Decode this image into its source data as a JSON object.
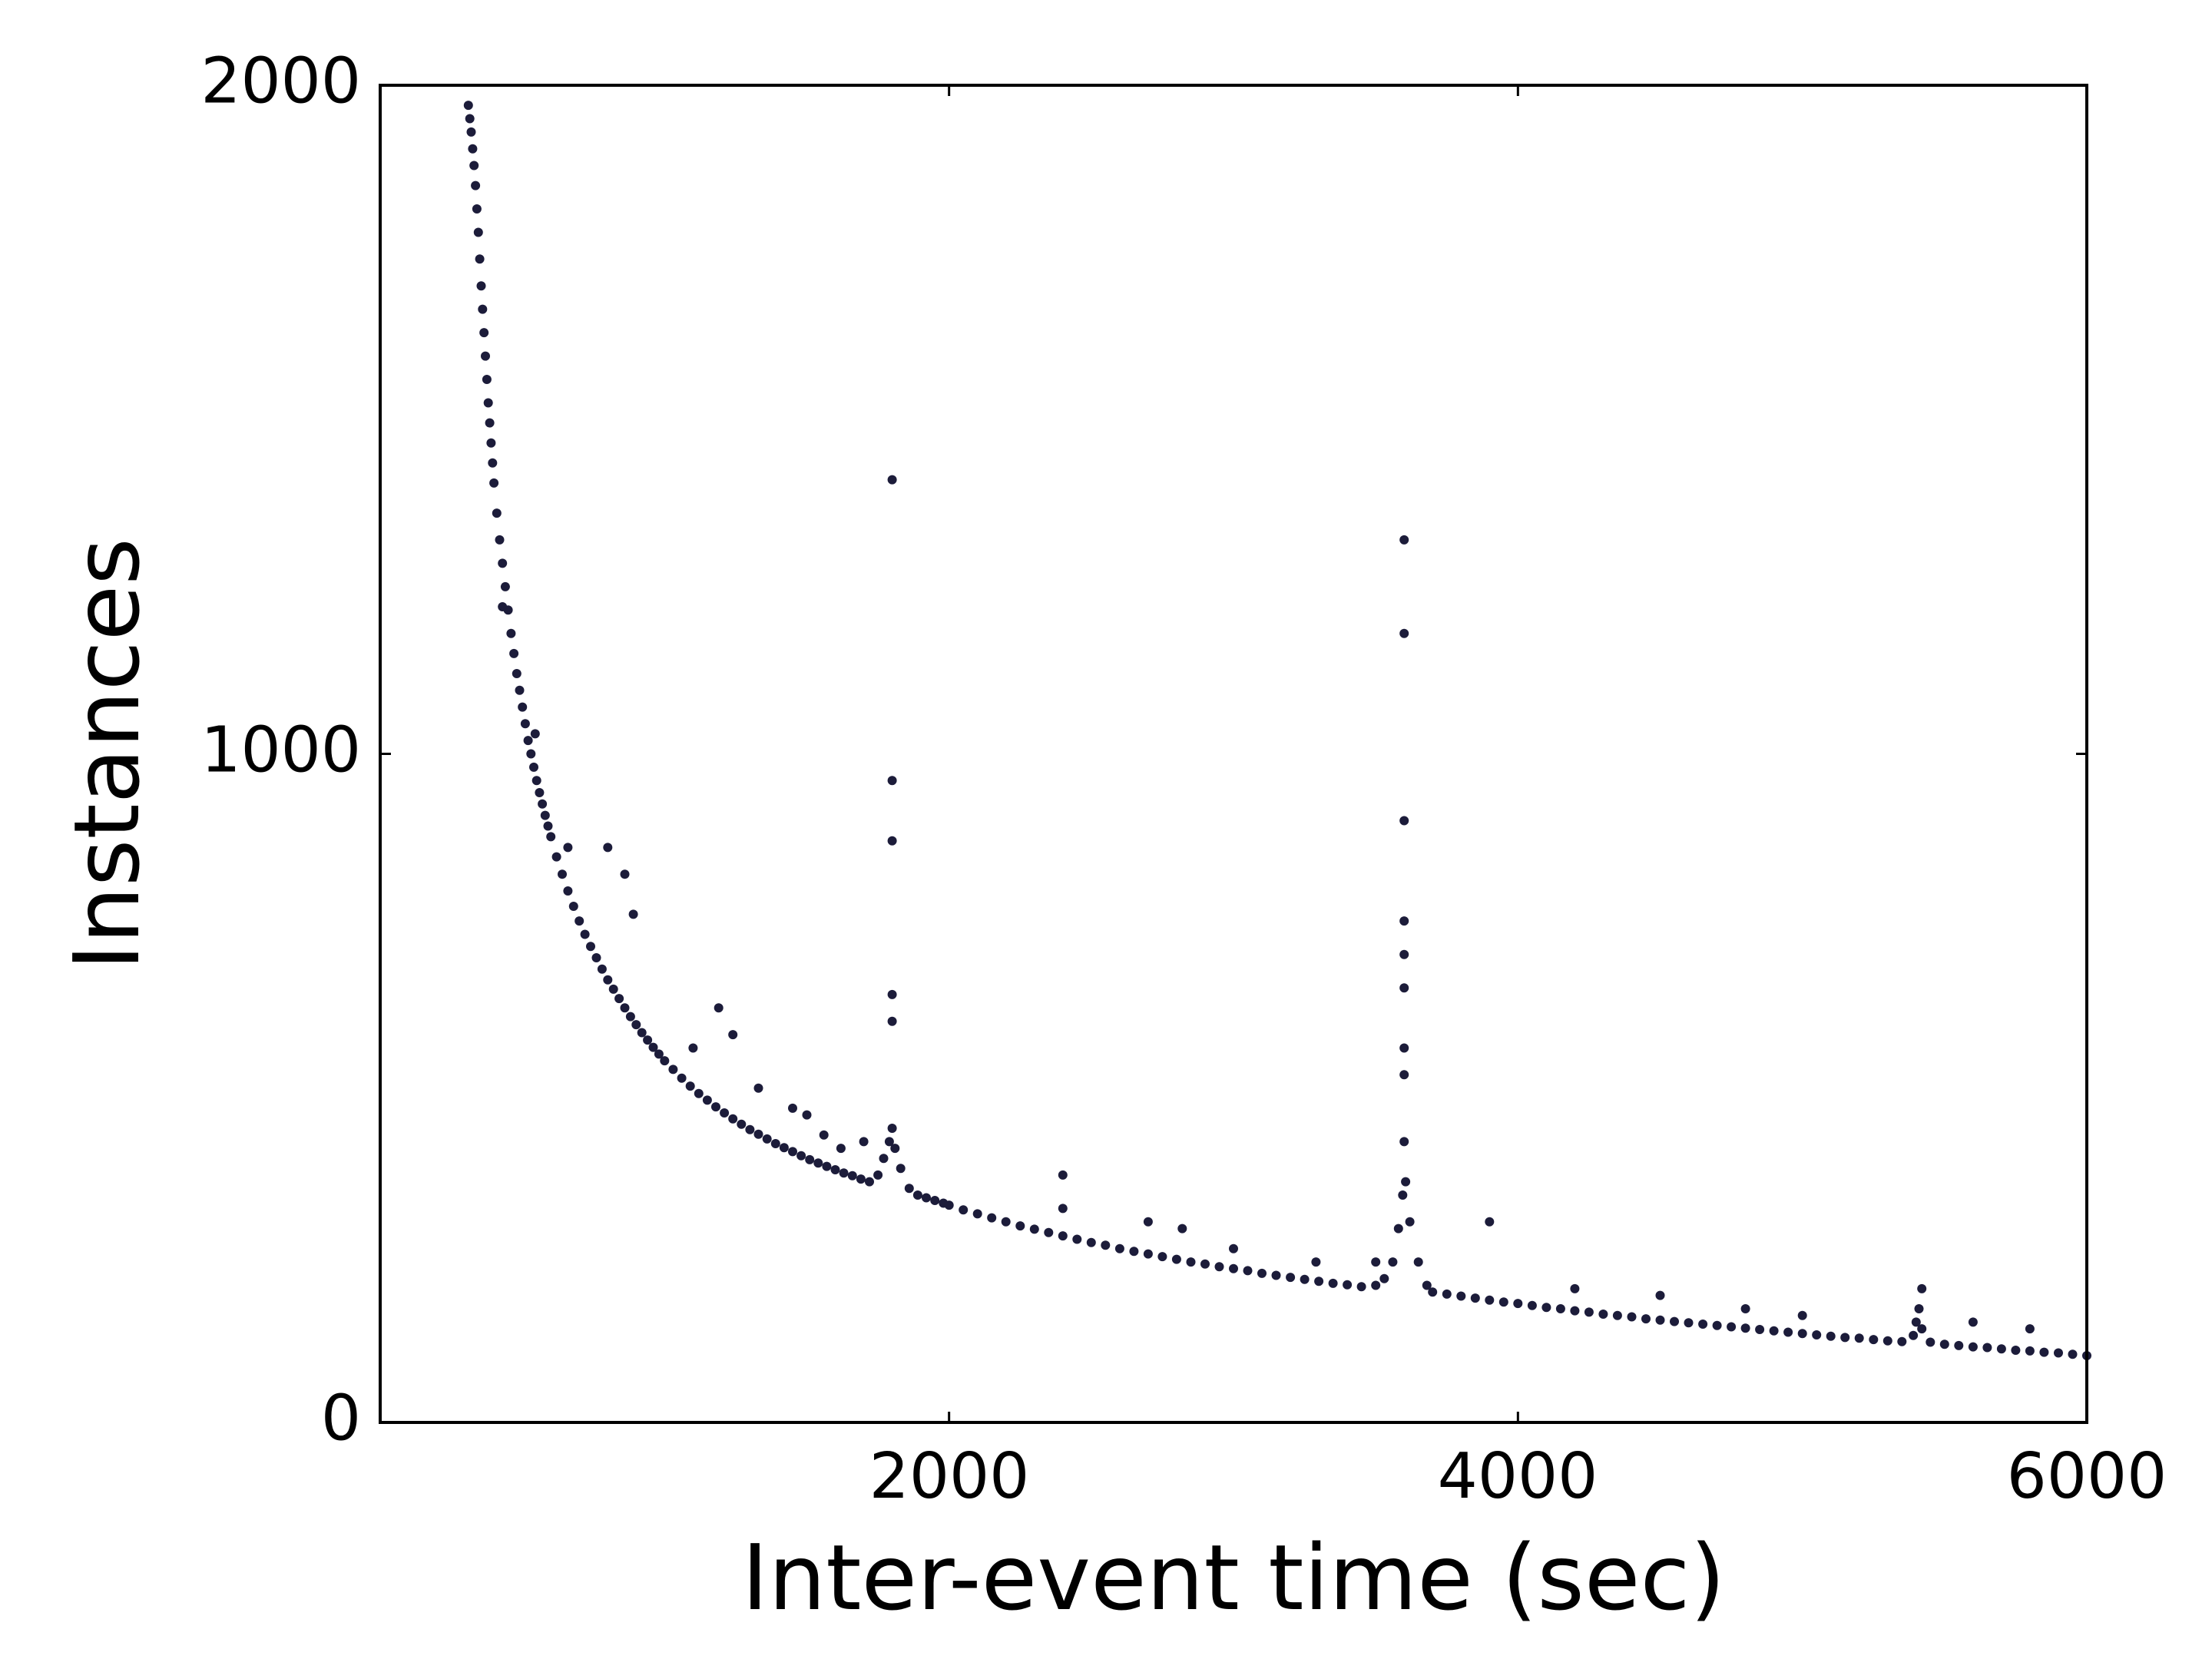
{
  "chart_data": {
    "type": "scatter",
    "title": "",
    "xlabel": "Inter-event time (sec)",
    "ylabel": "Instances",
    "xlim": [
      0,
      6000
    ],
    "ylim": [
      0,
      2000
    ],
    "xticks": [
      2000,
      4000,
      6000
    ],
    "yticks": [
      0,
      1000,
      2000
    ],
    "xtick_labels": [
      "2000",
      "4000",
      "6000"
    ],
    "ytick_labels": [
      "0",
      "1000",
      "2000"
    ],
    "grid": false,
    "legend": "none",
    "marker_color": "#1c1c3a",
    "series": [
      {
        "points": [
          [
            310,
            1970
          ],
          [
            315,
            1950
          ],
          [
            320,
            1930
          ],
          [
            325,
            1905
          ],
          [
            330,
            1880
          ],
          [
            335,
            1850
          ],
          [
            340,
            1815
          ],
          [
            345,
            1780
          ],
          [
            350,
            1740
          ],
          [
            355,
            1700
          ],
          [
            360,
            1665
          ],
          [
            365,
            1630
          ],
          [
            370,
            1595
          ],
          [
            375,
            1560
          ],
          [
            380,
            1525
          ],
          [
            385,
            1495
          ],
          [
            390,
            1465
          ],
          [
            395,
            1435
          ],
          [
            400,
            1405
          ],
          [
            410,
            1360
          ],
          [
            420,
            1320
          ],
          [
            430,
            1285
          ],
          [
            440,
            1250
          ],
          [
            450,
            1215
          ],
          [
            460,
            1180
          ],
          [
            470,
            1150
          ],
          [
            480,
            1120
          ],
          [
            490,
            1095
          ],
          [
            500,
            1070
          ],
          [
            510,
            1045
          ],
          [
            520,
            1020
          ],
          [
            530,
            1000
          ],
          [
            540,
            980
          ],
          [
            550,
            960
          ],
          [
            560,
            942
          ],
          [
            570,
            925
          ],
          [
            580,
            908
          ],
          [
            590,
            892
          ],
          [
            600,
            876
          ],
          [
            620,
            846
          ],
          [
            640,
            820
          ],
          [
            660,
            795
          ],
          [
            680,
            772
          ],
          [
            700,
            750
          ],
          [
            720,
            730
          ],
          [
            740,
            712
          ],
          [
            760,
            695
          ],
          [
            780,
            678
          ],
          [
            800,
            662
          ],
          [
            820,
            648
          ],
          [
            840,
            634
          ],
          [
            860,
            620
          ],
          [
            880,
            607
          ],
          [
            900,
            595
          ],
          [
            920,
            583
          ],
          [
            940,
            572
          ],
          [
            960,
            561
          ],
          [
            980,
            551
          ],
          [
            1000,
            541
          ],
          [
            1030,
            528
          ],
          [
            1060,
            515
          ],
          [
            1090,
            503
          ],
          [
            1120,
            492
          ],
          [
            1150,
            482
          ],
          [
            1180,
            472
          ],
          [
            1210,
            463
          ],
          [
            1240,
            454
          ],
          [
            1270,
            446
          ],
          [
            1300,
            438
          ],
          [
            1330,
            431
          ],
          [
            1360,
            424
          ],
          [
            1390,
            417
          ],
          [
            1420,
            411
          ],
          [
            1450,
            405
          ],
          [
            1480,
            399
          ],
          [
            1510,
            393
          ],
          [
            1540,
            388
          ],
          [
            1570,
            383
          ],
          [
            1600,
            378
          ],
          [
            1630,
            373
          ],
          [
            1660,
            369
          ],
          [
            1690,
            364
          ],
          [
            1720,
            360
          ],
          [
            1750,
            370
          ],
          [
            1770,
            395
          ],
          [
            1790,
            420
          ],
          [
            1800,
            440
          ],
          [
            1810,
            410
          ],
          [
            1830,
            380
          ],
          [
            1860,
            350
          ],
          [
            1890,
            340
          ],
          [
            1920,
            336
          ],
          [
            1950,
            332
          ],
          [
            1980,
            328
          ],
          [
            2000,
            325
          ],
          [
            2050,
            318
          ],
          [
            2100,
            312
          ],
          [
            2150,
            306
          ],
          [
            2200,
            300
          ],
          [
            2250,
            294
          ],
          [
            2300,
            289
          ],
          [
            2350,
            284
          ],
          [
            2400,
            279
          ],
          [
            2450,
            274
          ],
          [
            2500,
            269
          ],
          [
            2550,
            265
          ],
          [
            2600,
            260
          ],
          [
            2650,
            256
          ],
          [
            2700,
            252
          ],
          [
            2750,
            248
          ],
          [
            2800,
            244
          ],
          [
            2850,
            240
          ],
          [
            2900,
            237
          ],
          [
            2950,
            233
          ],
          [
            3000,
            230
          ],
          [
            3050,
            227
          ],
          [
            3100,
            223
          ],
          [
            3150,
            220
          ],
          [
            3200,
            217
          ],
          [
            3250,
            214
          ],
          [
            3300,
            211
          ],
          [
            3350,
            208
          ],
          [
            3400,
            206
          ],
          [
            3450,
            203
          ],
          [
            3500,
            205
          ],
          [
            3530,
            215
          ],
          [
            3560,
            240
          ],
          [
            3580,
            290
          ],
          [
            3595,
            340
          ],
          [
            3600,
            420
          ],
          [
            3605,
            360
          ],
          [
            3620,
            300
          ],
          [
            3650,
            240
          ],
          [
            3680,
            205
          ],
          [
            3700,
            195
          ],
          [
            3750,
            192
          ],
          [
            3800,
            189
          ],
          [
            3850,
            186
          ],
          [
            3900,
            183
          ],
          [
            3950,
            180
          ],
          [
            4000,
            178
          ],
          [
            4050,
            175
          ],
          [
            4100,
            172
          ],
          [
            4150,
            170
          ],
          [
            4200,
            167
          ],
          [
            4250,
            165
          ],
          [
            4300,
            162
          ],
          [
            4350,
            160
          ],
          [
            4400,
            158
          ],
          [
            4450,
            155
          ],
          [
            4500,
            153
          ],
          [
            4550,
            151
          ],
          [
            4600,
            149
          ],
          [
            4650,
            147
          ],
          [
            4700,
            145
          ],
          [
            4750,
            143
          ],
          [
            4800,
            141
          ],
          [
            4850,
            139
          ],
          [
            4900,
            137
          ],
          [
            4950,
            135
          ],
          [
            5000,
            133
          ],
          [
            5050,
            131
          ],
          [
            5100,
            129
          ],
          [
            5150,
            127
          ],
          [
            5200,
            126
          ],
          [
            5250,
            124
          ],
          [
            5300,
            122
          ],
          [
            5350,
            121
          ],
          [
            5390,
            130
          ],
          [
            5400,
            150
          ],
          [
            5410,
            170
          ],
          [
            5420,
            140
          ],
          [
            5450,
            120
          ],
          [
            5500,
            117
          ],
          [
            5550,
            115
          ],
          [
            5600,
            113
          ],
          [
            5650,
            112
          ],
          [
            5700,
            110
          ],
          [
            5750,
            108
          ],
          [
            5800,
            107
          ],
          [
            5850,
            105
          ],
          [
            5900,
            104
          ],
          [
            5950,
            102
          ],
          [
            6000,
            100
          ],
          [
            430,
            1220
          ],
          [
            545,
            1030
          ],
          [
            660,
            860
          ],
          [
            800,
            860
          ],
          [
            860,
            820
          ],
          [
            890,
            760
          ],
          [
            1100,
            560
          ],
          [
            1190,
            620
          ],
          [
            1240,
            580
          ],
          [
            1330,
            500
          ],
          [
            1450,
            470
          ],
          [
            1500,
            460
          ],
          [
            1560,
            430
          ],
          [
            1620,
            410
          ],
          [
            1700,
            420
          ],
          [
            1800,
            600
          ],
          [
            1800,
            640
          ],
          [
            1800,
            870
          ],
          [
            1800,
            960
          ],
          [
            1800,
            1410
          ],
          [
            2400,
            320
          ],
          [
            2400,
            370
          ],
          [
            2700,
            300
          ],
          [
            2820,
            290
          ],
          [
            3000,
            260
          ],
          [
            3290,
            240
          ],
          [
            3500,
            240
          ],
          [
            3600,
            520
          ],
          [
            3600,
            560
          ],
          [
            3600,
            650
          ],
          [
            3600,
            700
          ],
          [
            3600,
            750
          ],
          [
            3600,
            900
          ],
          [
            3600,
            1180
          ],
          [
            3600,
            1320
          ],
          [
            3900,
            300
          ],
          [
            4200,
            200
          ],
          [
            4500,
            190
          ],
          [
            4800,
            170
          ],
          [
            5000,
            160
          ],
          [
            5420,
            200
          ],
          [
            5600,
            150
          ],
          [
            5800,
            140
          ]
        ]
      }
    ]
  }
}
